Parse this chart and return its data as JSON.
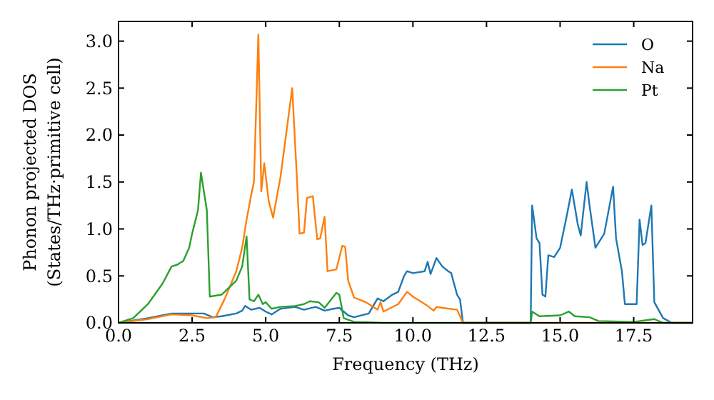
{
  "chart_data": {
    "type": "line",
    "xlabel": "Frequency (THz)",
    "ylabel": "Phonon projected DOS\n(States/THz·primitive cell)",
    "xlim": [
      0,
      19.5
    ],
    "ylim": [
      0,
      3.21
    ],
    "xticks": [
      {
        "value": 0,
        "label": "0.0"
      },
      {
        "value": 2.5,
        "label": "2.5"
      },
      {
        "value": 5,
        "label": "5.0"
      },
      {
        "value": 7.5,
        "label": "7.5"
      },
      {
        "value": 10,
        "label": "10.0"
      },
      {
        "value": 12.5,
        "label": "12.5"
      },
      {
        "value": 15,
        "label": "15.0"
      },
      {
        "value": 17.5,
        "label": "17.5"
      }
    ],
    "yticks": [
      {
        "value": 0,
        "label": "0.0"
      },
      0.5,
      {
        "value": 1,
        "label": "1.0"
      },
      1.5,
      {
        "value": 2,
        "label": "2.0"
      },
      2.5,
      {
        "value": 3,
        "label": "3.0"
      }
    ],
    "grid": false,
    "legend": "top right",
    "series": [
      {
        "name": "O",
        "color": "#1f77b4",
        "x": [
          0,
          1,
          1.8,
          2.5,
          2.9,
          3.2,
          3.5,
          4,
          4.2,
          4.3,
          4.5,
          4.8,
          5,
          5.2,
          5.5,
          6,
          6.3,
          6.7,
          7,
          7.3,
          7.5,
          7.8,
          8,
          8.5,
          8.8,
          9,
          9.3,
          9.5,
          9.7,
          9.8,
          10,
          10.4,
          10.5,
          10.6,
          10.8,
          11,
          11.2,
          11.3,
          11.5,
          11.6,
          11.7,
          14,
          14.05,
          14.2,
          14.3,
          14.4,
          14.5,
          14.6,
          14.8,
          15,
          15.2,
          15.4,
          15.6,
          15.7,
          15.9,
          16,
          16.2,
          16.5,
          16.8,
          16.9,
          17.1,
          17.2,
          17.6,
          17.7,
          17.8,
          17.9,
          18.1,
          18.2,
          18.5,
          18.8,
          19.5
        ],
        "values": [
          0,
          0.05,
          0.1,
          0.1,
          0.1,
          0.06,
          0.07,
          0.1,
          0.13,
          0.18,
          0.14,
          0.16,
          0.12,
          0.09,
          0.15,
          0.17,
          0.14,
          0.17,
          0.13,
          0.15,
          0.16,
          0.08,
          0.06,
          0.1,
          0.26,
          0.23,
          0.3,
          0.33,
          0.5,
          0.55,
          0.53,
          0.55,
          0.65,
          0.52,
          0.69,
          0.6,
          0.55,
          0.53,
          0.3,
          0.25,
          0,
          0,
          1.25,
          0.9,
          0.85,
          0.3,
          0.28,
          0.72,
          0.7,
          0.8,
          1.1,
          1.42,
          1.05,
          0.93,
          1.5,
          1.25,
          0.8,
          0.95,
          1.45,
          0.9,
          0.55,
          0.2,
          0.2,
          1.1,
          0.83,
          0.85,
          1.25,
          0.22,
          0.05,
          0,
          0
        ]
      },
      {
        "name": "Na",
        "color": "#ff7f0e",
        "x": [
          0,
          1,
          1.8,
          2.5,
          3,
          3.3,
          3.6,
          4,
          4.2,
          4.35,
          4.5,
          4.6,
          4.75,
          4.85,
          4.95,
          5.1,
          5.25,
          5.5,
          5.9,
          6.05,
          6.15,
          6.3,
          6.4,
          6.6,
          6.75,
          6.85,
          7,
          7.1,
          7.4,
          7.6,
          7.7,
          7.8,
          8,
          8.4,
          8.8,
          8.9,
          9,
          9.5,
          9.8,
          10,
          10.5,
          10.7,
          10.8,
          11,
          11.5,
          11.7,
          19.5
        ],
        "values": [
          0,
          0.04,
          0.09,
          0.08,
          0.05,
          0.06,
          0.25,
          0.55,
          0.8,
          1.1,
          1.35,
          1.5,
          3.07,
          1.4,
          1.7,
          1.3,
          1.12,
          1.55,
          2.5,
          1.6,
          0.95,
          0.96,
          1.33,
          1.35,
          0.89,
          0.9,
          1.13,
          0.55,
          0.57,
          0.82,
          0.81,
          0.45,
          0.27,
          0.22,
          0.14,
          0.22,
          0.12,
          0.2,
          0.33,
          0.28,
          0.18,
          0.13,
          0.17,
          0.16,
          0.14,
          0,
          0
        ]
      },
      {
        "name": "Pt",
        "color": "#2ca02c",
        "x": [
          0,
          0.5,
          1,
          1.5,
          1.8,
          2,
          2.2,
          2.4,
          2.5,
          2.7,
          2.8,
          3,
          3.1,
          3.5,
          4,
          4.2,
          4.35,
          4.45,
          4.6,
          4.75,
          4.9,
          5,
          5.2,
          5.5,
          6,
          6.3,
          6.5,
          6.8,
          7,
          7.4,
          7.5,
          7.65,
          8,
          9,
          14,
          14.05,
          14.3,
          15,
          15.3,
          15.5,
          16,
          16.3,
          17.5,
          18.2,
          18.5,
          19.5
        ],
        "values": [
          0,
          0.05,
          0.2,
          0.42,
          0.6,
          0.62,
          0.66,
          0.8,
          0.95,
          1.2,
          1.6,
          1.2,
          0.28,
          0.3,
          0.45,
          0.6,
          0.92,
          0.25,
          0.23,
          0.3,
          0.2,
          0.22,
          0.15,
          0.17,
          0.18,
          0.2,
          0.23,
          0.22,
          0.16,
          0.32,
          0.3,
          0.05,
          0.01,
          0,
          0,
          0.12,
          0.07,
          0.08,
          0.12,
          0.07,
          0.06,
          0.02,
          0.01,
          0.04,
          0,
          0
        ]
      }
    ]
  }
}
